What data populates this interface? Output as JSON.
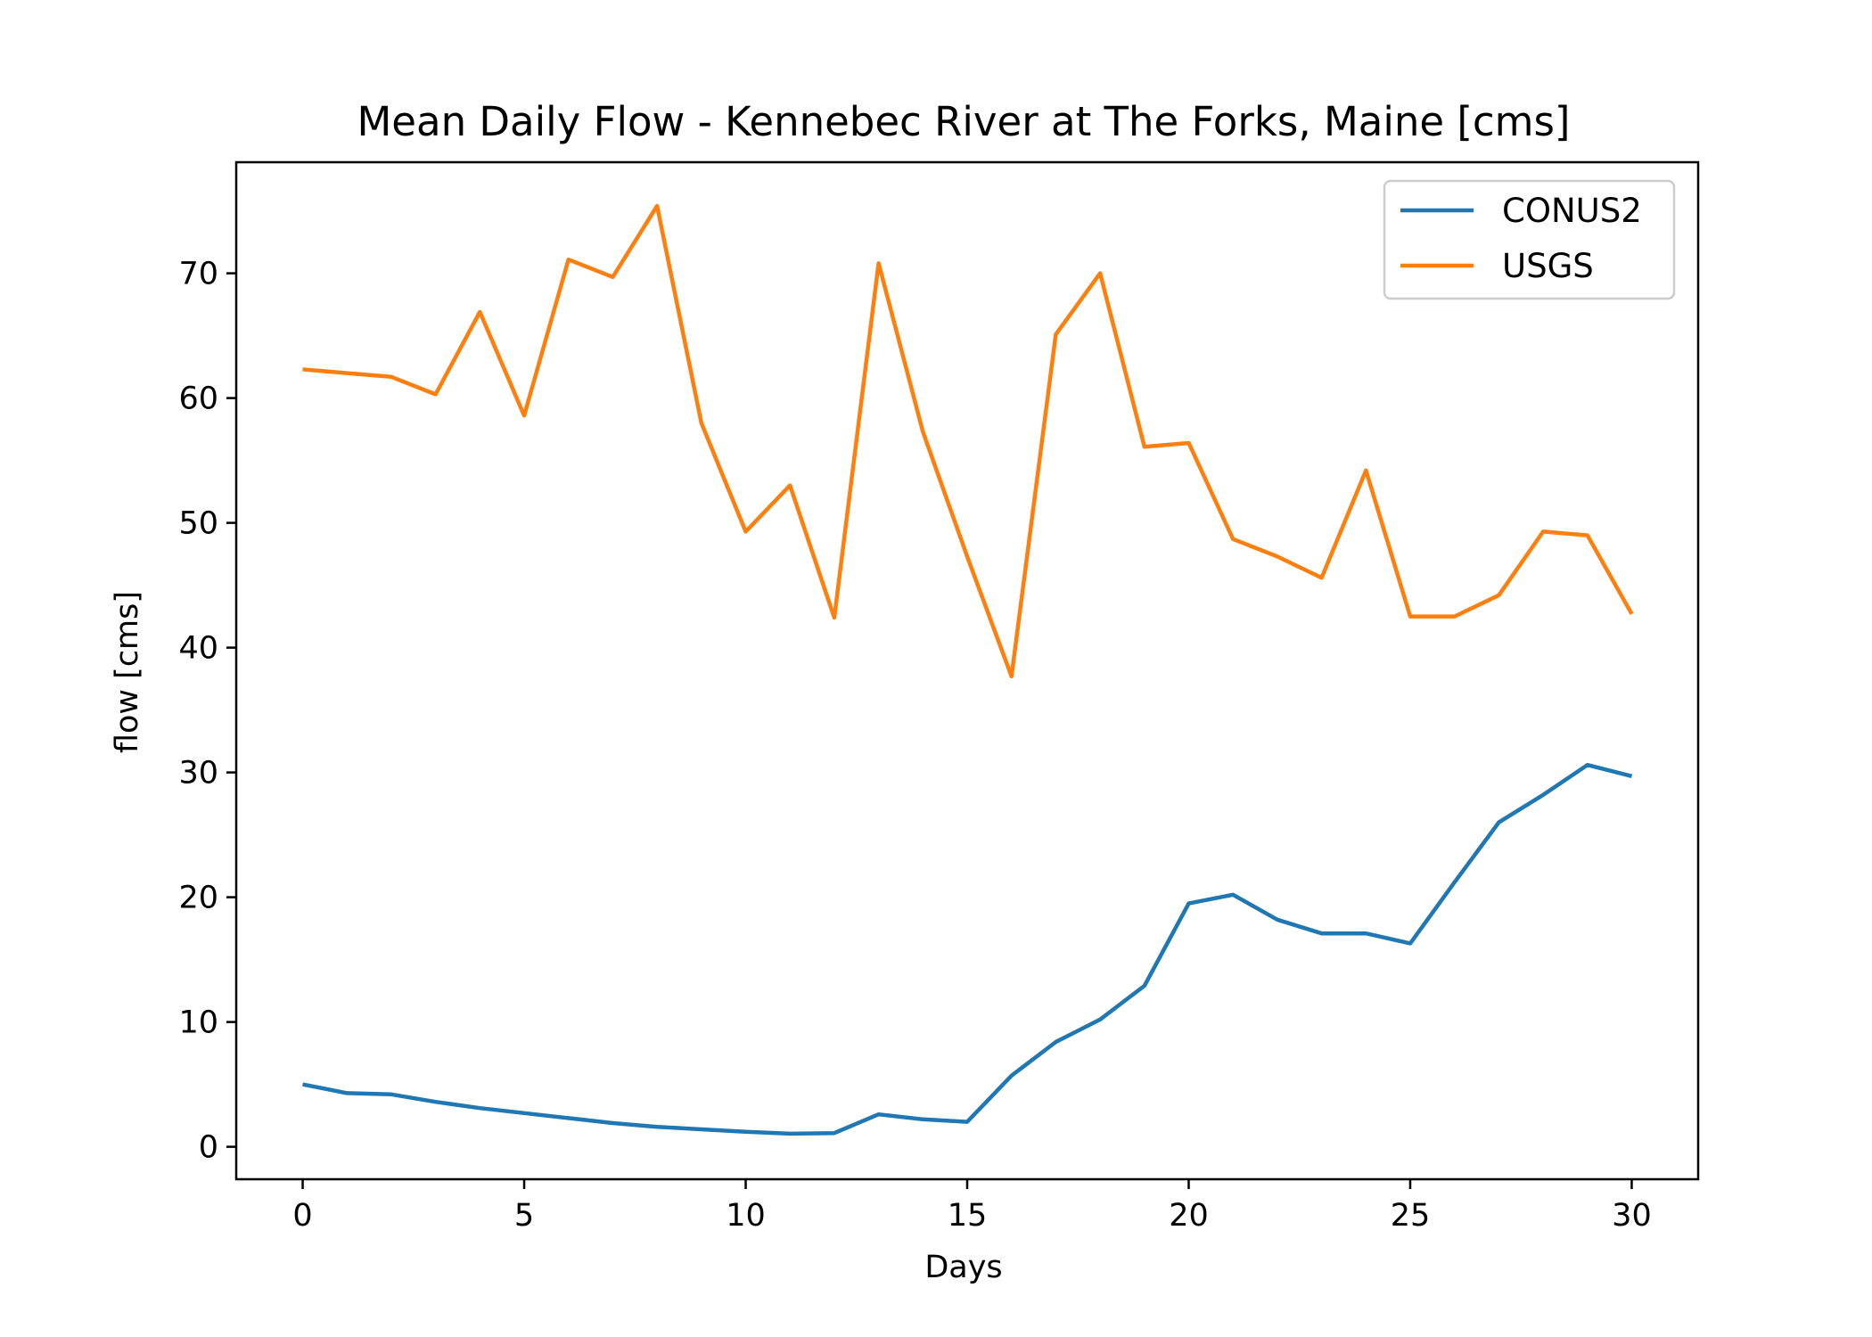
{
  "chart_data": {
    "type": "line",
    "title": "Mean Daily Flow - Kennebec River at The Forks, Maine [cms]",
    "xlabel": "Days",
    "ylabel": "flow [cms]",
    "xlim": [
      -1.5,
      31.5
    ],
    "ylim": [
      -2.6,
      78.9
    ],
    "xticks": [
      0,
      5,
      10,
      15,
      20,
      25,
      30
    ],
    "yticks": [
      0,
      10,
      20,
      30,
      40,
      50,
      60,
      70
    ],
    "grid": false,
    "legend_position": "top-right",
    "x": [
      0,
      1,
      2,
      3,
      4,
      5,
      6,
      7,
      8,
      9,
      10,
      11,
      12,
      13,
      14,
      15,
      16,
      17,
      18,
      19,
      20,
      21,
      22,
      23,
      24,
      25,
      26,
      27,
      28,
      29,
      30
    ],
    "series": [
      {
        "name": "CONUS2",
        "color": "#1f77b4",
        "values": [
          5.0,
          4.3,
          4.2,
          3.6,
          3.1,
          2.7,
          2.3,
          1.9,
          1.6,
          1.4,
          1.2,
          1.05,
          1.1,
          2.6,
          2.2,
          2.0,
          5.7,
          8.4,
          10.2,
          12.9,
          19.5,
          20.2,
          18.2,
          17.1,
          17.1,
          16.3,
          21.2,
          26.0,
          28.2,
          30.6,
          29.7
        ]
      },
      {
        "name": "USGS",
        "color": "#ff7f0e",
        "values": [
          62.3,
          62.0,
          61.7,
          60.3,
          66.9,
          58.6,
          71.1,
          69.7,
          75.4,
          58.0,
          49.3,
          53.0,
          42.4,
          70.8,
          57.3,
          47.3,
          37.7,
          65.1,
          70.0,
          56.1,
          56.4,
          48.7,
          47.3,
          45.6,
          54.2,
          42.5,
          42.5,
          44.2,
          49.3,
          49.0,
          42.7
        ]
      }
    ]
  }
}
